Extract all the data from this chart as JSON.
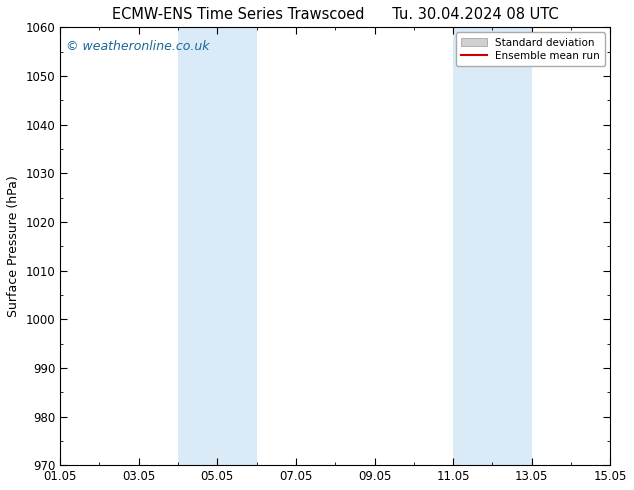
{
  "title_left": "ECMW-ENS Time Series Trawscoed",
  "title_right": "Tu. 30.04.2024 08 UTC",
  "ylabel": "Surface Pressure (hPa)",
  "ylim": [
    970,
    1060
  ],
  "yticks": [
    970,
    980,
    990,
    1000,
    1010,
    1020,
    1030,
    1040,
    1050,
    1060
  ],
  "xlim_num": [
    0,
    14
  ],
  "xtick_labels": [
    "01.05",
    "03.05",
    "05.05",
    "07.05",
    "09.05",
    "11.05",
    "13.05",
    "15.05"
  ],
  "xtick_positions": [
    0,
    2,
    4,
    6,
    8,
    10,
    12,
    14
  ],
  "shaded_regions": [
    {
      "xmin": 3.0,
      "xmax": 5.0
    },
    {
      "xmin": 10.0,
      "xmax": 12.0
    }
  ],
  "shade_color": "#daeaf7",
  "figure_bg_color": "#ffffff",
  "plot_bg_color": "#ffffff",
  "watermark_text": "© weatheronline.co.uk",
  "watermark_color": "#1a6699",
  "legend_std_color": "#d0d0d0",
  "legend_mean_color": "#cc0000",
  "legend_std_label": "Standard deviation",
  "legend_mean_label": "Ensemble mean run",
  "title_fontsize": 10.5,
  "ylabel_fontsize": 9,
  "tick_fontsize": 8.5,
  "watermark_fontsize": 9
}
